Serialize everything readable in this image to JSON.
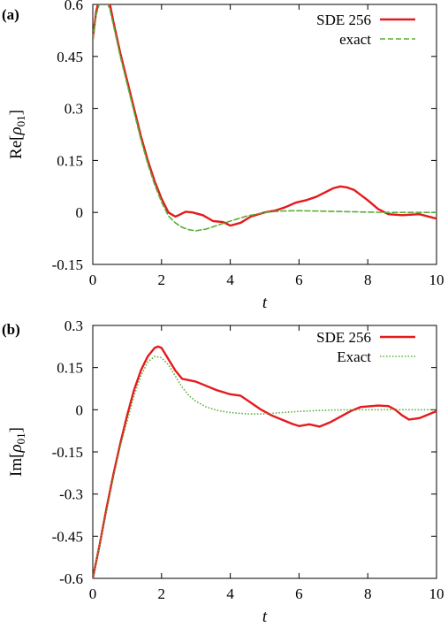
{
  "chart_data": [
    {
      "type": "line",
      "panel_label": "(a)",
      "xlabel": "t",
      "ylabel": "Re[ρ01]",
      "ylabel_parts": {
        "base": "Re[",
        "sym": "ρ",
        "sub": "01",
        "close": "]"
      },
      "xlim": [
        0,
        10
      ],
      "ylim": [
        -0.15,
        0.6
      ],
      "xticks": [
        0,
        2,
        4,
        6,
        8,
        10
      ],
      "xtick_labels": [
        "0",
        "2",
        "4",
        "6",
        "8",
        "10"
      ],
      "yticks": [
        -0.15,
        0,
        0.15,
        0.3,
        0.45,
        0.6
      ],
      "ytick_labels": [
        "-0.15",
        "0",
        "0.15",
        "0.3",
        "0.45",
        "0.6"
      ],
      "legend_position": "top-right",
      "series": [
        {
          "name": "SDE 256",
          "color": "#e41a1c",
          "style": "solid",
          "x": [
            0,
            0.1,
            0.2,
            0.3,
            0.4,
            0.5,
            0.6,
            0.8,
            1.0,
            1.2,
            1.4,
            1.6,
            1.8,
            2.0,
            2.2,
            2.4,
            2.5,
            2.7,
            2.9,
            3.2,
            3.5,
            3.8,
            4.0,
            4.3,
            4.6,
            5.0,
            5.3,
            5.6,
            5.9,
            6.2,
            6.5,
            6.8,
            7.0,
            7.2,
            7.4,
            7.6,
            7.8,
            8.0,
            8.3,
            8.6,
            9.0,
            9.5,
            10.0
          ],
          "y": [
            0.5,
            0.58,
            0.62,
            0.63,
            0.625,
            0.6,
            0.55,
            0.46,
            0.38,
            0.3,
            0.22,
            0.15,
            0.09,
            0.04,
            0.0,
            -0.012,
            -0.008,
            0.002,
            0.0,
            -0.008,
            -0.025,
            -0.028,
            -0.038,
            -0.03,
            -0.012,
            0.0,
            0.005,
            0.015,
            0.028,
            0.035,
            0.045,
            0.06,
            0.07,
            0.075,
            0.072,
            0.065,
            0.05,
            0.035,
            0.01,
            -0.005,
            -0.008,
            -0.005,
            -0.018
          ]
        },
        {
          "name": "exact",
          "color": "#5aae3a",
          "style": "dashed",
          "x": [
            0,
            0.1,
            0.2,
            0.3,
            0.4,
            0.5,
            0.6,
            0.8,
            1.0,
            1.2,
            1.4,
            1.6,
            1.8,
            2.0,
            2.2,
            2.4,
            2.6,
            2.8,
            3.0,
            3.3,
            3.6,
            4.0,
            4.5,
            5.0,
            5.5,
            6.0,
            6.5,
            7.0,
            7.5,
            8.0,
            8.5,
            9.0,
            9.5,
            10.0
          ],
          "y": [
            0.5,
            0.57,
            0.605,
            0.615,
            0.61,
            0.585,
            0.54,
            0.45,
            0.37,
            0.29,
            0.21,
            0.14,
            0.08,
            0.03,
            -0.01,
            -0.03,
            -0.043,
            -0.05,
            -0.053,
            -0.048,
            -0.038,
            -0.025,
            -0.01,
            0.0,
            0.004,
            0.005,
            0.004,
            0.003,
            0.002,
            0.001,
            0.0,
            0.0,
            0.0,
            0.0
          ]
        }
      ]
    },
    {
      "type": "line",
      "panel_label": "(b)",
      "xlabel": "t",
      "ylabel": "Im[ρ01]",
      "ylabel_parts": {
        "base": "Im[",
        "sym": "ρ",
        "sub": "01",
        "close": "]"
      },
      "xlim": [
        0,
        10
      ],
      "ylim": [
        -0.6,
        0.3
      ],
      "xticks": [
        0,
        2,
        4,
        6,
        8,
        10
      ],
      "xtick_labels": [
        "0",
        "2",
        "4",
        "6",
        "8",
        "10"
      ],
      "yticks": [
        -0.6,
        -0.45,
        -0.3,
        -0.15,
        0,
        0.15,
        0.3
      ],
      "ytick_labels": [
        "-0.6",
        "-0.45",
        "-0.3",
        "-0.15",
        "0",
        "0.15",
        "0.3"
      ],
      "legend_position": "top-right",
      "series": [
        {
          "name": "SDE 256",
          "color": "#e41a1c",
          "style": "solid",
          "x": [
            0,
            0.2,
            0.4,
            0.6,
            0.8,
            1.0,
            1.2,
            1.4,
            1.6,
            1.8,
            1.9,
            2.0,
            2.2,
            2.4,
            2.6,
            2.8,
            3.0,
            3.3,
            3.6,
            4.0,
            4.3,
            4.6,
            4.9,
            5.2,
            5.5,
            5.8,
            6.0,
            6.3,
            6.6,
            6.9,
            7.2,
            7.5,
            7.8,
            8.0,
            8.3,
            8.6,
            8.8,
            9.0,
            9.2,
            9.5,
            9.8,
            10.0
          ],
          "y": [
            -0.6,
            -0.48,
            -0.35,
            -0.23,
            -0.12,
            -0.02,
            0.07,
            0.14,
            0.19,
            0.22,
            0.225,
            0.22,
            0.18,
            0.14,
            0.11,
            0.105,
            0.1,
            0.085,
            0.07,
            0.055,
            0.05,
            0.025,
            0.0,
            -0.02,
            -0.035,
            -0.05,
            -0.058,
            -0.052,
            -0.06,
            -0.045,
            -0.025,
            -0.005,
            0.01,
            0.012,
            0.015,
            0.013,
            0.0,
            -0.02,
            -0.035,
            -0.03,
            -0.015,
            -0.005
          ]
        },
        {
          "name": "Exact",
          "color": "#5aae3a",
          "style": "dotted",
          "x": [
            0,
            0.2,
            0.4,
            0.6,
            0.8,
            1.0,
            1.2,
            1.4,
            1.6,
            1.8,
            2.0,
            2.2,
            2.4,
            2.6,
            2.8,
            3.0,
            3.3,
            3.6,
            4.0,
            4.5,
            5.0,
            5.5,
            6.0,
            6.5,
            7.0,
            7.5,
            8.0,
            8.5,
            9.0,
            9.5,
            10.0
          ],
          "y": [
            -0.6,
            -0.48,
            -0.36,
            -0.24,
            -0.13,
            -0.04,
            0.05,
            0.12,
            0.17,
            0.19,
            0.185,
            0.16,
            0.12,
            0.08,
            0.05,
            0.03,
            0.01,
            -0.002,
            -0.01,
            -0.015,
            -0.015,
            -0.01,
            -0.006,
            -0.003,
            -0.001,
            0.0,
            0.0,
            0.0,
            0.0,
            0.0,
            0.0
          ]
        }
      ]
    }
  ]
}
